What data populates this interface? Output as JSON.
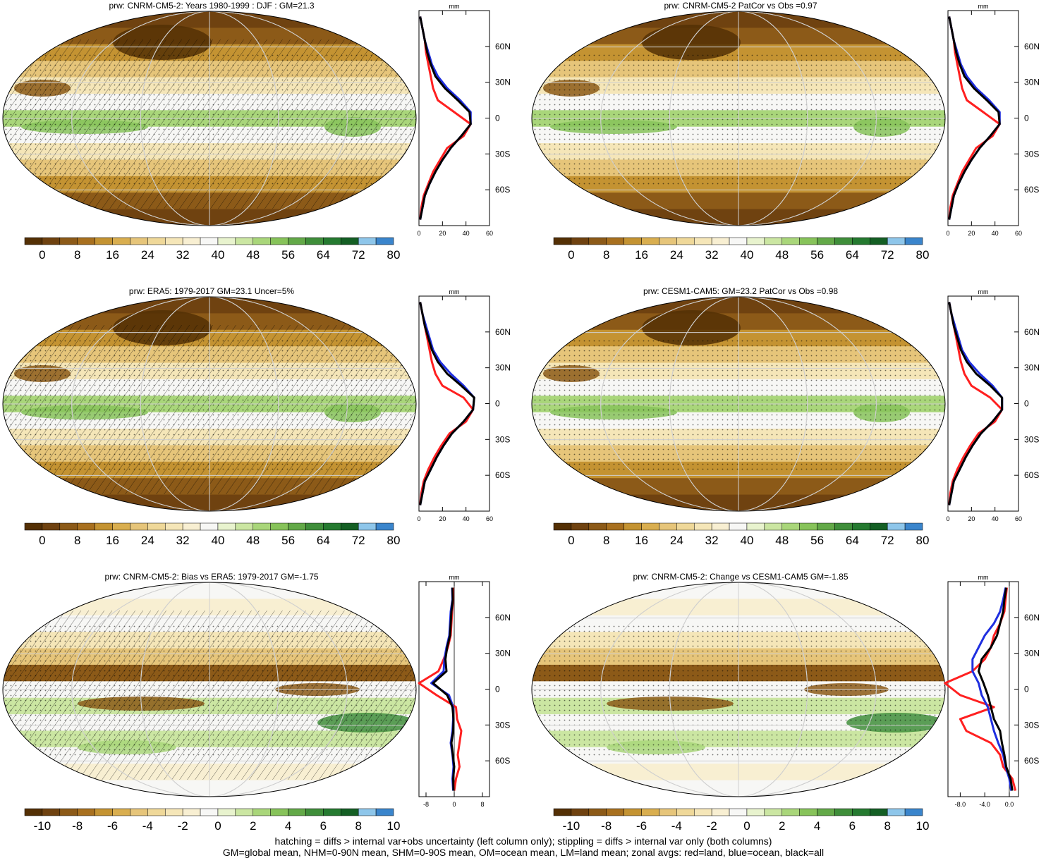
{
  "footer": {
    "line1": "hatching = diffs > internal var+obs uncertainty (left column only); stippling = diffs > internal var only (both columns)",
    "line2": "GM=global mean, NHM=0-90N mean, SHM=0-90S mean, OM=ocean mean, LM=land mean; zonal avgs: red=land, blue=ocean, black=all"
  },
  "colorbars": {
    "abs": {
      "colors": [
        "#543005",
        "#6f4210",
        "#8c5a18",
        "#a8701f",
        "#c49332",
        "#d9ae4f",
        "#e6c57a",
        "#efd899",
        "#f5e6b8",
        "#f8efd2",
        "#f7f7f5",
        "#e8f3ce",
        "#cbe6a2",
        "#a9d67a",
        "#87c35a",
        "#63a948",
        "#3f8e3a",
        "#257a30",
        "#145f24",
        "#8ec6ea",
        "#3a85cc"
      ],
      "labels": [
        "0",
        "8",
        "16",
        "24",
        "32",
        "40",
        "48",
        "56",
        "64",
        "72",
        "80"
      ]
    },
    "diff": {
      "colors": [
        "#543005",
        "#6f4210",
        "#8c5a18",
        "#a8701f",
        "#c49332",
        "#d9ae4f",
        "#e6c57a",
        "#efd899",
        "#f5e6b8",
        "#f8efd2",
        "#f7f7f5",
        "#e8f3ce",
        "#cbe6a2",
        "#a9d67a",
        "#87c35a",
        "#63a948",
        "#3f8e3a",
        "#257a30",
        "#145f24",
        "#8ec6ea",
        "#3a85cc"
      ],
      "labels": [
        "-10",
        "-8",
        "-6",
        "-4",
        "-2",
        "0",
        "2",
        "4",
        "6",
        "8",
        "10"
      ]
    }
  },
  "chart_data": [
    {
      "type": "heatmap",
      "kind": "abs",
      "hatch": true,
      "title": "prw: CNRM-CM5-2: Years 1980-1999 : DJF : GM=21.3",
      "zonal": {
        "unit": "mm",
        "xticks": [
          "0",
          "20",
          "40",
          "60"
        ],
        "xlim": [
          0,
          60
        ],
        "yticks": [
          "60N",
          "30N",
          "0",
          "30S",
          "60S"
        ],
        "lat": [
          85,
          75,
          65,
          55,
          45,
          35,
          25,
          15,
          5,
          -5,
          -15,
          -25,
          -35,
          -45,
          -55,
          -65,
          -75,
          -85
        ],
        "all": [
          1,
          3,
          5,
          7,
          10,
          14,
          22,
          33,
          43,
          44,
          36,
          27,
          20,
          14,
          9,
          5,
          3,
          1
        ],
        "land": [
          1,
          3,
          5,
          6,
          8,
          10,
          12,
          16,
          30,
          44,
          38,
          24,
          18,
          12,
          8,
          4,
          2,
          1
        ],
        "ocean": [
          1,
          3,
          5,
          8,
          11,
          16,
          24,
          35,
          44,
          44,
          36,
          27,
          20,
          14,
          9,
          5,
          3,
          1
        ]
      }
    },
    {
      "type": "heatmap",
      "kind": "abs",
      "hatch": false,
      "title": "prw: CNRM-CM5-2 PatCor vs Obs =0.97",
      "zonal": {
        "unit": "mm",
        "xticks": [
          "0",
          "20",
          "40",
          "60"
        ],
        "xlim": [
          0,
          60
        ],
        "yticks": [
          "60N",
          "30N",
          "0",
          "30S",
          "60S"
        ],
        "lat": [
          85,
          75,
          65,
          55,
          45,
          35,
          25,
          15,
          5,
          -5,
          -15,
          -25,
          -35,
          -45,
          -55,
          -65,
          -75,
          -85
        ],
        "all": [
          1,
          3,
          5,
          7,
          10,
          14,
          22,
          33,
          43,
          44,
          36,
          27,
          20,
          14,
          9,
          5,
          3,
          1
        ],
        "land": [
          1,
          3,
          5,
          6,
          8,
          10,
          12,
          16,
          30,
          44,
          38,
          24,
          18,
          12,
          8,
          4,
          2,
          1
        ],
        "ocean": [
          1,
          3,
          5,
          8,
          11,
          16,
          24,
          35,
          44,
          44,
          36,
          27,
          20,
          14,
          9,
          5,
          3,
          1
        ]
      }
    },
    {
      "type": "heatmap",
      "kind": "abs",
      "hatch": true,
      "title": "prw: ERA5: 1979-2017 GM=23.1 Uncer=5%",
      "zonal": {
        "unit": "mm",
        "xticks": [
          "0",
          "20",
          "40",
          "60"
        ],
        "xlim": [
          0,
          60
        ],
        "yticks": [
          "60N",
          "30N",
          "0",
          "30S",
          "60S"
        ],
        "lat": [
          85,
          75,
          65,
          55,
          45,
          35,
          25,
          15,
          5,
          -5,
          -15,
          -25,
          -35,
          -45,
          -55,
          -65,
          -75,
          -85
        ],
        "all": [
          1,
          3,
          5,
          8,
          11,
          16,
          24,
          36,
          47,
          46,
          38,
          28,
          21,
          15,
          10,
          5,
          3,
          1
        ],
        "land": [
          1,
          3,
          5,
          7,
          9,
          11,
          14,
          20,
          38,
          46,
          40,
          26,
          19,
          13,
          8,
          4,
          2,
          1
        ],
        "ocean": [
          1,
          3,
          6,
          9,
          12,
          18,
          27,
          38,
          47,
          46,
          38,
          28,
          21,
          15,
          10,
          5,
          3,
          1
        ]
      }
    },
    {
      "type": "heatmap",
      "kind": "abs",
      "hatch": false,
      "title": "prw: CESM1-CAM5: GM=23.2 PatCor vs Obs =0.98",
      "zonal": {
        "unit": "mm",
        "xticks": [
          "0",
          "20",
          "40",
          "60"
        ],
        "xlim": [
          0,
          60
        ],
        "yticks": [
          "60N",
          "30N",
          "0",
          "30S",
          "60S"
        ],
        "lat": [
          85,
          75,
          65,
          55,
          45,
          35,
          25,
          15,
          5,
          -5,
          -15,
          -25,
          -35,
          -45,
          -55,
          -65,
          -75,
          -85
        ],
        "all": [
          1,
          3,
          5,
          8,
          11,
          16,
          24,
          36,
          46,
          46,
          38,
          28,
          21,
          15,
          10,
          5,
          3,
          1
        ],
        "land": [
          1,
          3,
          5,
          7,
          9,
          11,
          14,
          20,
          36,
          46,
          40,
          26,
          19,
          13,
          8,
          4,
          2,
          1
        ],
        "ocean": [
          1,
          3,
          6,
          9,
          12,
          18,
          27,
          38,
          46,
          46,
          38,
          28,
          21,
          15,
          10,
          5,
          3,
          1
        ]
      }
    },
    {
      "type": "heatmap",
      "kind": "diff",
      "hatch": true,
      "title": "prw: CNRM-CM5-2: Bias vs ERA5: 1979-2017 GM=-1.75",
      "zonal": {
        "unit": "mm",
        "xticks": [
          "-8",
          "0",
          "8"
        ],
        "xlim": [
          -10,
          10
        ],
        "yticks": [
          "60N",
          "30N",
          "0",
          "30S",
          "60S"
        ],
        "lat": [
          85,
          75,
          65,
          55,
          45,
          35,
          25,
          15,
          5,
          -5,
          -15,
          -25,
          -35,
          -45,
          -55,
          -65,
          -75,
          -85
        ],
        "all": [
          -0.5,
          -0.4,
          -0.8,
          -1.0,
          -1.2,
          -2.0,
          -2.5,
          -2.2,
          -6.0,
          -2.0,
          -0.5,
          -0.2,
          -0.3,
          -0.8,
          -0.4,
          0.0,
          -0.3,
          -0.2
        ],
        "land": [
          -0.3,
          -0.3,
          -0.6,
          -0.8,
          -1.0,
          -1.8,
          -3.0,
          -4.5,
          -10.0,
          -5.0,
          0.5,
          0.8,
          2.0,
          1.5,
          1.0,
          1.5,
          0.5,
          0.0
        ],
        "ocean": [
          -0.6,
          -0.5,
          -1.0,
          -1.2,
          -1.4,
          -2.2,
          -2.8,
          -3.0,
          -6.5,
          -1.5,
          -0.3,
          -0.3,
          -0.5,
          -1.0,
          -0.5,
          -0.2,
          -0.5,
          -0.3
        ]
      }
    },
    {
      "type": "heatmap",
      "kind": "diff",
      "hatch": false,
      "title": "prw: CNRM-CM5-2: Change vs CESM1-CAM5 GM=-1.85",
      "zonal": {
        "unit": "mm",
        "xticks": [
          "-8.0",
          "-4.0",
          "0.0"
        ],
        "xlim": [
          -10,
          1.5
        ],
        "yticks": [
          "60N",
          "30N",
          "0",
          "30S",
          "60S"
        ],
        "lat": [
          85,
          75,
          65,
          55,
          45,
          35,
          25,
          15,
          5,
          -5,
          -15,
          -25,
          -35,
          -45,
          -55,
          -65,
          -75,
          -85
        ],
        "all": [
          -0.5,
          -0.8,
          -1.0,
          -1.5,
          -2.0,
          -3.0,
          -4.5,
          -5.0,
          -4.2,
          -3.5,
          -3.0,
          -2.5,
          -1.5,
          -1.2,
          -0.8,
          -0.5,
          0.2,
          0.5
        ],
        "land": [
          -0.4,
          -0.6,
          -0.8,
          -1.5,
          -2.5,
          -3.0,
          -4.0,
          -6.0,
          -10.5,
          -8.0,
          -2.5,
          -8.0,
          -7.0,
          -3.0,
          -1.5,
          -1.0,
          0.5,
          1.0
        ],
        "ocean": [
          -0.6,
          -1.0,
          -1.5,
          -2.5,
          -4.0,
          -5.0,
          -6.0,
          -6.0,
          -5.0,
          -4.5,
          -3.5,
          -3.0,
          -2.5,
          -1.8,
          -1.0,
          -0.6,
          0.0,
          0.3
        ]
      }
    }
  ]
}
